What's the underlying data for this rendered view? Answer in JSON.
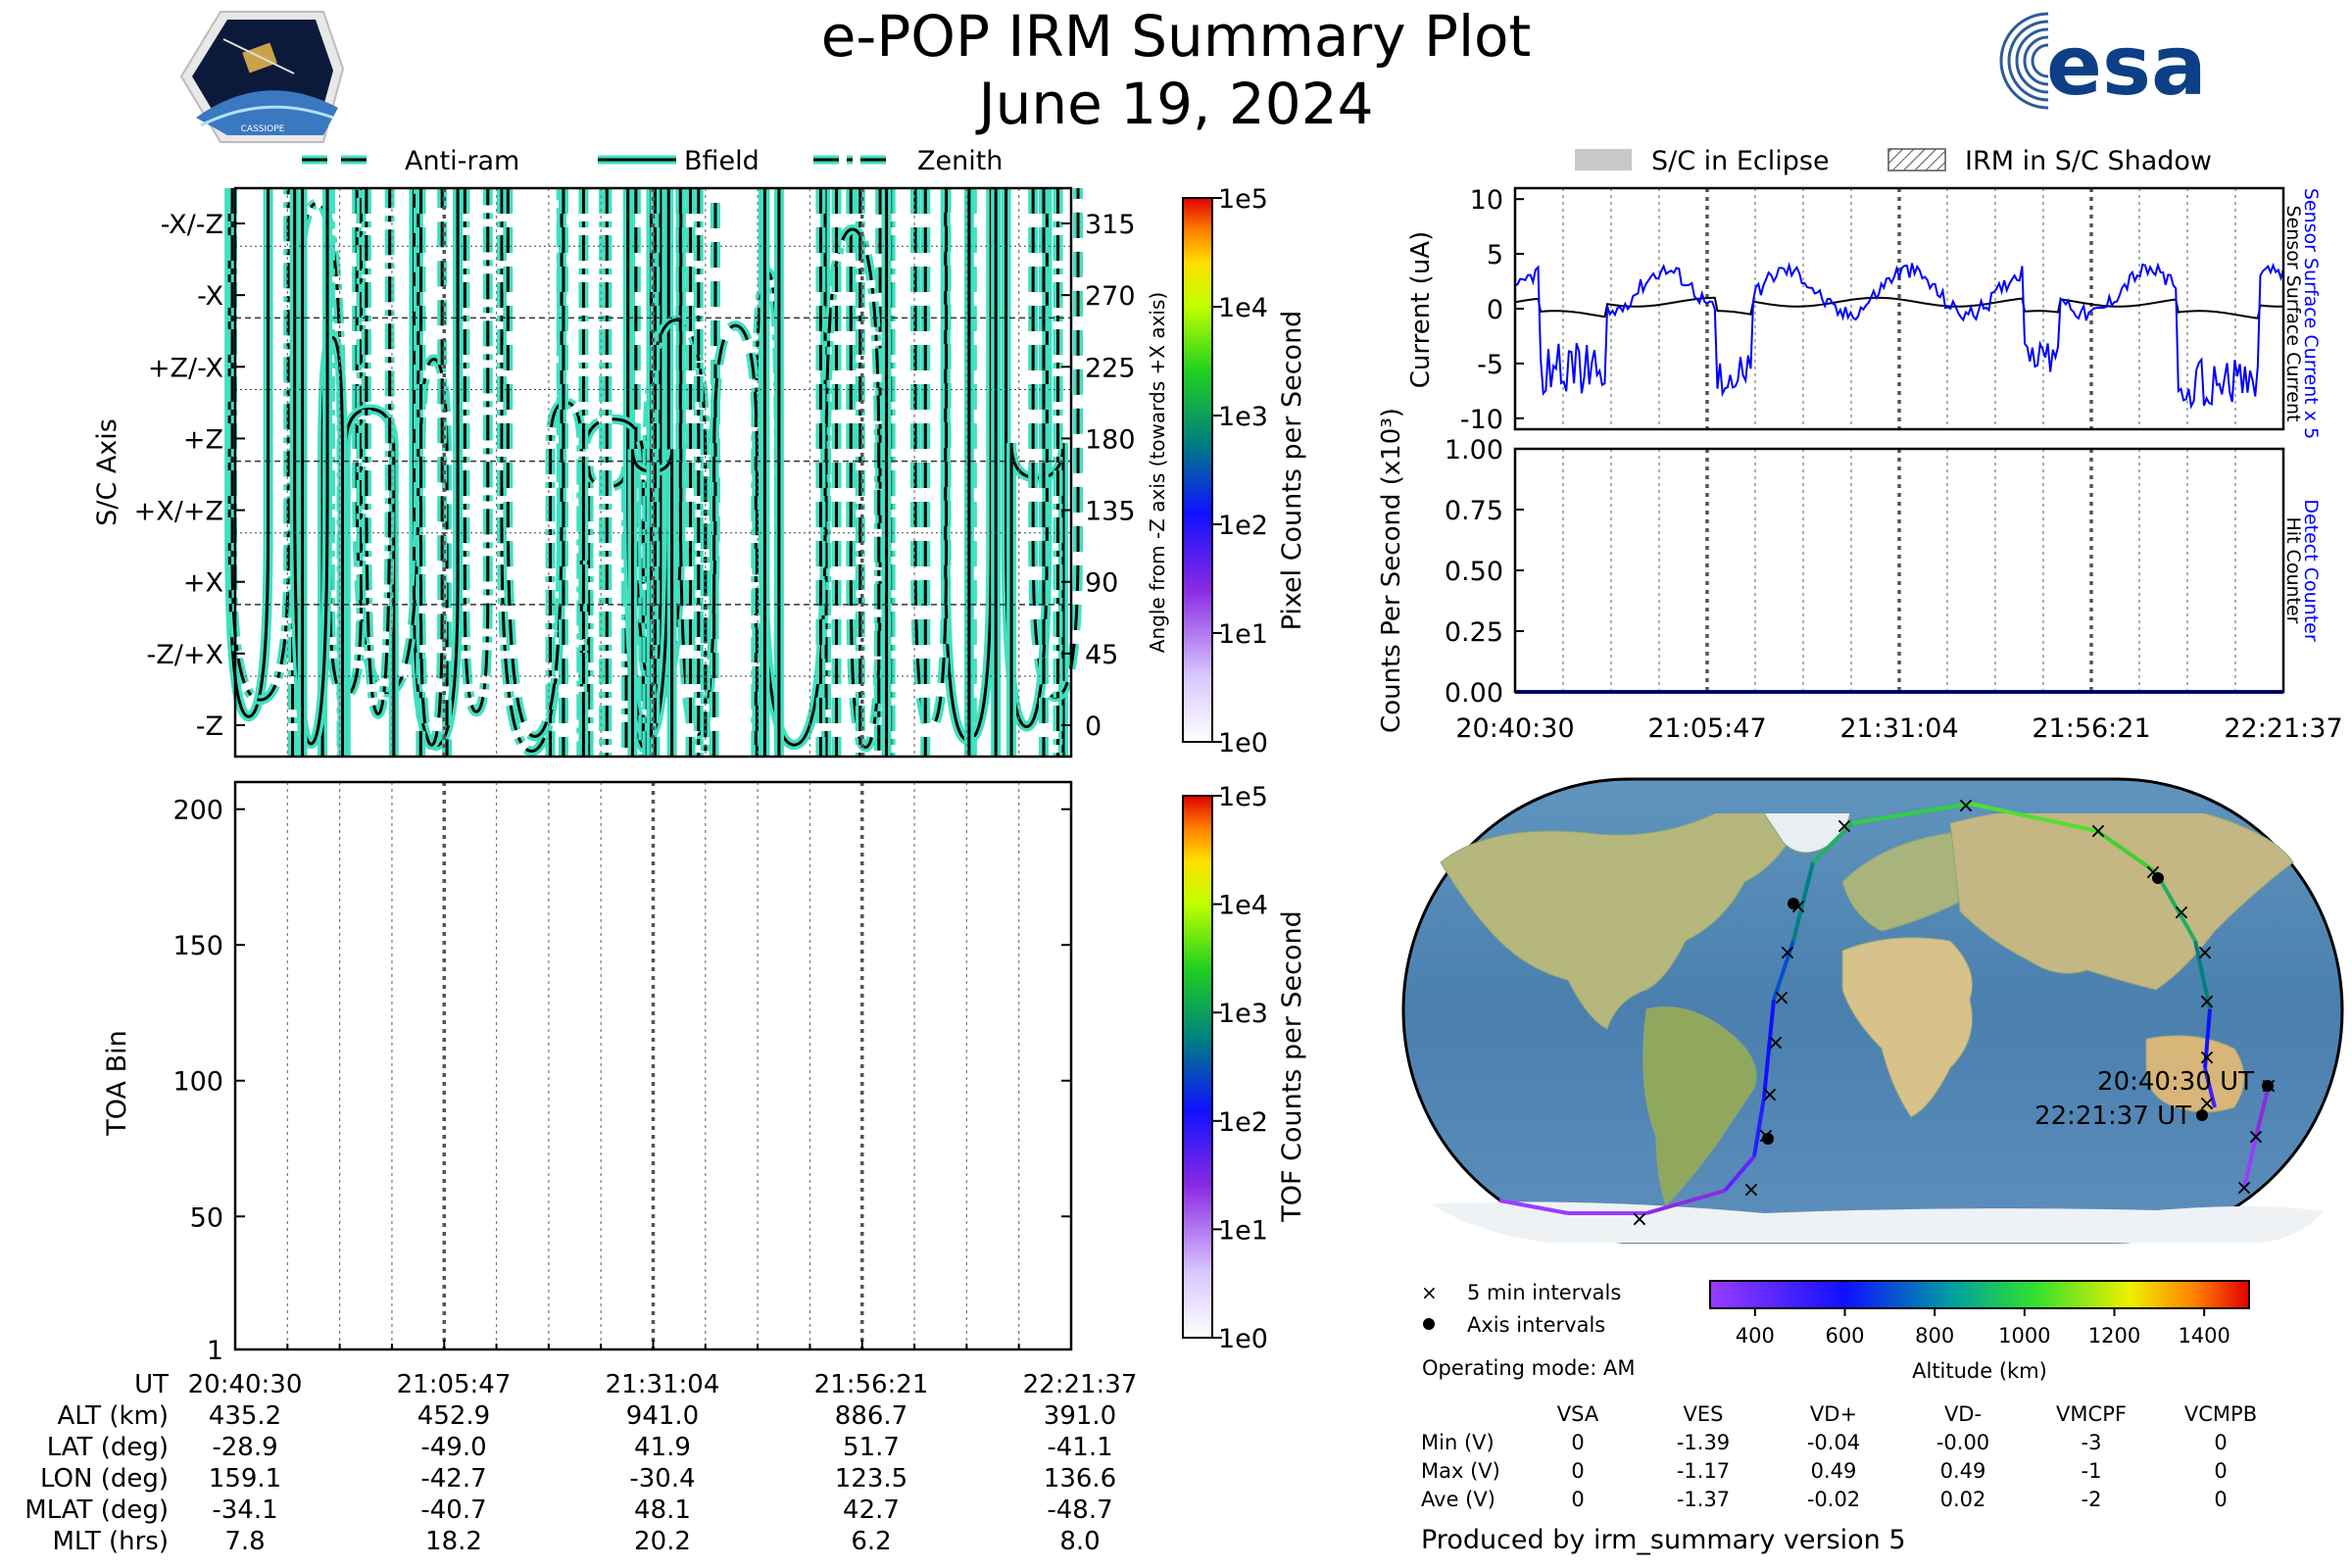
{
  "header": {
    "title": "e-POP IRM Summary Plot",
    "date": "June 19, 2024",
    "left_logo_text": "CASSIOPE",
    "right_logo_text": "esa"
  },
  "legend_top_left": [
    "Anti-ram",
    "Bfield",
    "Zenith"
  ],
  "legend_top_right": [
    "S/C in Eclipse",
    "IRM in S/C Shadow"
  ],
  "time_ticks": [
    "20:40:30",
    "21:05:47",
    "21:31:04",
    "21:56:21",
    "22:21:37"
  ],
  "colors": {
    "teal": "#40e0c0",
    "blue": "#0000ff",
    "black": "#000000"
  },
  "chart_data": [
    {
      "id": "sc_axis_panel",
      "type": "line",
      "ylabel": "S/C Axis",
      "yticks": [
        "-X/-Z",
        "-X",
        "+Z/-X",
        "+Z",
        "+X/+Z",
        "+X",
        "-Z/+X",
        "-Z"
      ],
      "y2label": "Angle from -Z axis (towards +X axis)",
      "y2ticks": [
        315,
        270,
        225,
        180,
        135,
        90,
        45,
        0
      ],
      "series": [
        {
          "name": "Anti-ram"
        },
        {
          "name": "Bfield"
        },
        {
          "name": "Zenith"
        }
      ],
      "colorbar": {
        "label": "Pixel Counts per Second",
        "ticks": [
          "1e5",
          "1e4",
          "1e3",
          "1e2",
          "1e1",
          "1e0"
        ],
        "scale": "log"
      }
    },
    {
      "id": "toa_panel",
      "type": "heatmap",
      "ylabel": "TOA Bin",
      "yticks": [
        200,
        150,
        100,
        50,
        1
      ],
      "ylim": [
        1,
        210
      ],
      "colorbar": {
        "label": "TOF Counts per Second",
        "ticks": [
          "1e5",
          "1e4",
          "1e3",
          "1e2",
          "1e1",
          "1e0"
        ],
        "scale": "log"
      }
    },
    {
      "id": "current_panel",
      "type": "line",
      "ylabel": "Current (uA)",
      "ylim": [
        -11,
        11
      ],
      "yticks": [
        10,
        5,
        0,
        -5,
        -10
      ],
      "series": [
        {
          "name": "Sensor Surface Current x 5",
          "color": "#0000ff"
        },
        {
          "name": "Sensor Surface Current",
          "color": "#000000"
        }
      ]
    },
    {
      "id": "counts_panel",
      "type": "line",
      "ylabel": "Counts Per Second (x10³)",
      "ylim": [
        0,
        1
      ],
      "yticks": [
        "1.00",
        "0.75",
        "0.50",
        "0.25",
        "0.00"
      ],
      "series": [
        {
          "name": "Detect Counter",
          "color": "#0000ff",
          "values": [
            0,
            0,
            0,
            0,
            0
          ]
        },
        {
          "name": "Hit Counter",
          "color": "#000000"
        }
      ]
    }
  ],
  "map": {
    "start_label": "20:40:30 UT",
    "end_label": "22:21:37 UT",
    "legend": [
      "5 min intervals",
      "Axis intervals"
    ],
    "operating_mode": "Operating mode: AM",
    "altitude_colorbar": {
      "label": "Altitude (km)",
      "ticks": [
        400,
        600,
        800,
        1000,
        1200,
        1400
      ]
    }
  },
  "ephemeris": {
    "rows": [
      {
        "label": "UT",
        "values": [
          "20:40:30",
          "21:05:47",
          "21:31:04",
          "21:56:21",
          "22:21:37"
        ]
      },
      {
        "label": "ALT (km)",
        "values": [
          "435.2",
          "452.9",
          "941.0",
          "886.7",
          "391.0"
        ]
      },
      {
        "label": "LAT (deg)",
        "values": [
          "-28.9",
          "-49.0",
          "41.9",
          "51.7",
          "-41.1"
        ]
      },
      {
        "label": "LON (deg)",
        "values": [
          "159.1",
          "-42.7",
          "-30.4",
          "123.5",
          "136.6"
        ]
      },
      {
        "label": "MLAT (deg)",
        "values": [
          "-34.1",
          "-40.7",
          "48.1",
          "42.7",
          "-48.7"
        ]
      },
      {
        "label": "MLT (hrs)",
        "values": [
          "7.8",
          "18.2",
          "20.2",
          "6.2",
          "8.0"
        ]
      }
    ]
  },
  "voltages": {
    "columns": [
      "VSA",
      "VES",
      "VD+",
      "VD-",
      "VMCPF",
      "VCMPB"
    ],
    "rows": [
      {
        "label": "Min (V)",
        "values": [
          "0",
          "-1.39",
          "-0.04",
          "-0.00",
          "-3",
          "0"
        ]
      },
      {
        "label": "Max (V)",
        "values": [
          "0",
          "-1.17",
          "0.49",
          "0.49",
          "-1",
          "0"
        ]
      },
      {
        "label": "Ave (V)",
        "values": [
          "0",
          "-1.37",
          "-0.02",
          "0.02",
          "-2",
          "0"
        ]
      }
    ]
  },
  "footer": "Produced by irm_summary version 5"
}
